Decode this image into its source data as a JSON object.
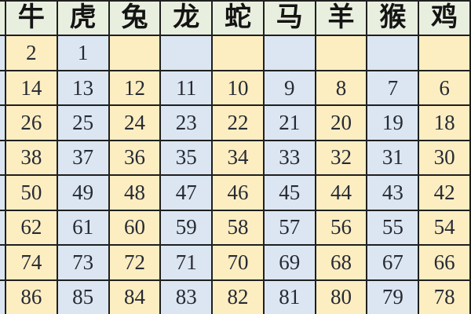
{
  "table": {
    "columns": [
      "牛",
      "虎",
      "兔",
      "龙",
      "蛇",
      "马",
      "羊",
      "猴",
      "鸡"
    ],
    "rows": [
      [
        "2",
        "1",
        "",
        "",
        "",
        "",
        "",
        "",
        ""
      ],
      [
        "14",
        "13",
        "12",
        "11",
        "10",
        "9",
        "8",
        "7",
        "6"
      ],
      [
        "26",
        "25",
        "24",
        "23",
        "22",
        "21",
        "20",
        "19",
        "18"
      ],
      [
        "38",
        "37",
        "36",
        "35",
        "34",
        "33",
        "32",
        "31",
        "30"
      ],
      [
        "50",
        "49",
        "48",
        "47",
        "46",
        "45",
        "44",
        "43",
        "42"
      ],
      [
        "62",
        "61",
        "60",
        "59",
        "58",
        "57",
        "56",
        "55",
        "54"
      ],
      [
        "74",
        "73",
        "72",
        "71",
        "70",
        "69",
        "68",
        "67",
        "66"
      ],
      [
        "86",
        "85",
        "84",
        "83",
        "82",
        "81",
        "80",
        "79",
        "78"
      ]
    ]
  },
  "chart_data": {
    "type": "table",
    "title": "",
    "columns": [
      "牛",
      "虎",
      "兔",
      "龙",
      "蛇",
      "马",
      "羊",
      "猴",
      "鸡"
    ],
    "rows": [
      [
        2,
        1,
        null,
        null,
        null,
        null,
        null,
        null,
        null
      ],
      [
        14,
        13,
        12,
        11,
        10,
        9,
        8,
        7,
        6
      ],
      [
        26,
        25,
        24,
        23,
        22,
        21,
        20,
        19,
        18
      ],
      [
        38,
        37,
        36,
        35,
        34,
        33,
        32,
        31,
        30
      ],
      [
        50,
        49,
        48,
        47,
        46,
        45,
        44,
        43,
        42
      ],
      [
        62,
        61,
        60,
        59,
        58,
        57,
        56,
        55,
        54
      ],
      [
        74,
        73,
        72,
        71,
        70,
        69,
        68,
        67,
        66
      ],
      [
        86,
        85,
        84,
        83,
        82,
        81,
        80,
        79,
        78
      ]
    ],
    "layout_hints": {
      "header_row": true,
      "cutoff_partial_column_left": true,
      "column_fill_alternation": [
        "cream",
        "blue"
      ]
    }
  },
  "colors": {
    "header_bg": "#e8efdf",
    "cell_cream": "#fdeec2",
    "cell_blue": "#dbe6f2",
    "grid_line": "#1f1f1f",
    "header_text": "#141414",
    "number_text": "#262a33"
  }
}
